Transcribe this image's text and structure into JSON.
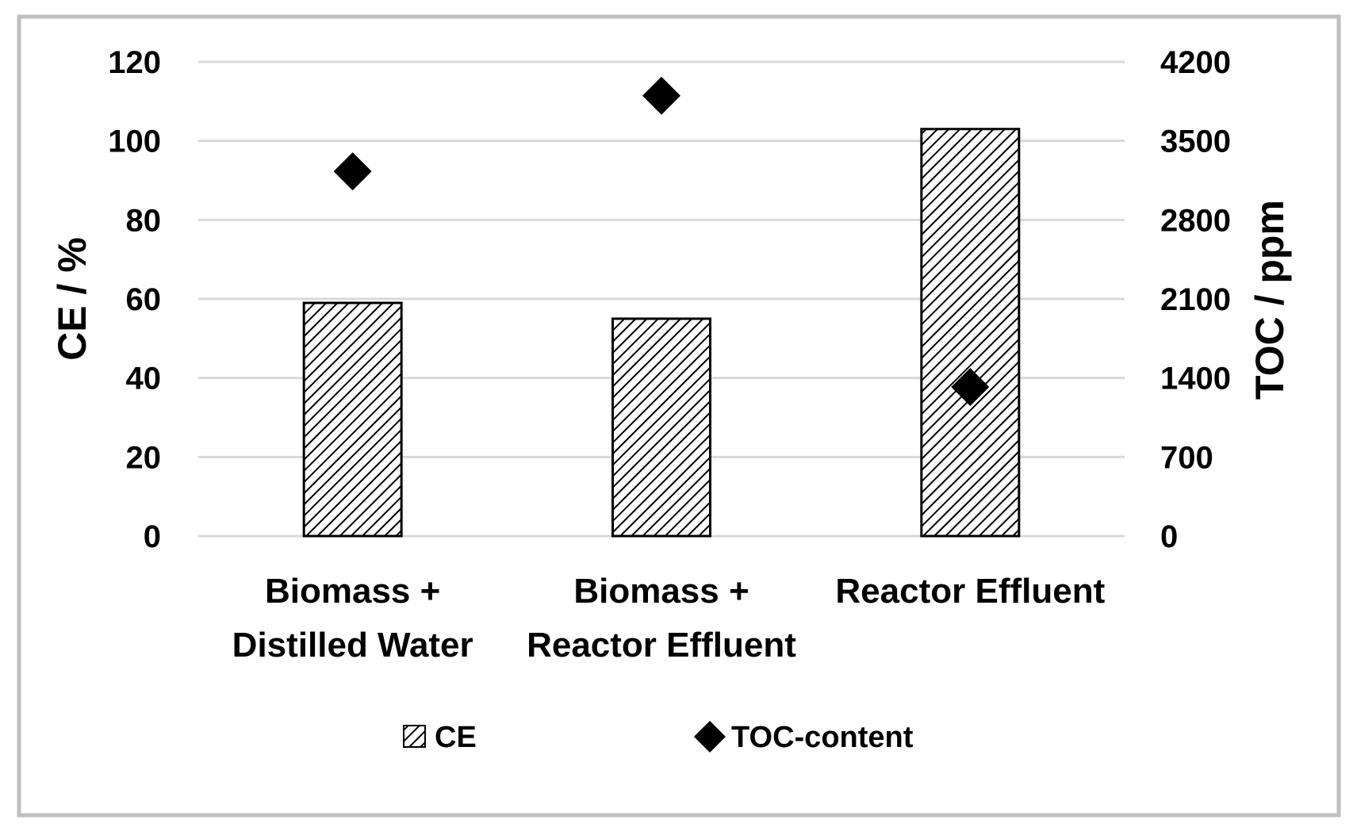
{
  "chart_data": {
    "type": "bar",
    "title": "",
    "categories": [
      [
        "Biomass +",
        "Distilled Water"
      ],
      [
        "Biomass +",
        "Reactor Effluent"
      ],
      [
        "Reactor Effluent"
      ]
    ],
    "series": [
      {
        "name": "CE",
        "kind": "bar",
        "axis": "left",
        "fill": "diagonal-hatch",
        "values": [
          59,
          55,
          103
        ]
      },
      {
        "name": "TOC-content",
        "kind": "scatter",
        "axis": "right",
        "marker": "diamond",
        "values": [
          3230,
          3900,
          1320
        ]
      }
    ],
    "ylabel": "CE / %",
    "ylim": [
      0,
      120
    ],
    "yticks": [
      "0",
      "20",
      "40",
      "60",
      "80",
      "100",
      "120"
    ],
    "y2label": "TOC / ppm",
    "y2lim": [
      0,
      4200
    ],
    "y2ticks": [
      "0",
      "700",
      "1400",
      "2100",
      "2800",
      "3500",
      "4200"
    ],
    "grid": true,
    "legend": {
      "position": "bottom",
      "entries": [
        "CE",
        "TOC-content"
      ]
    }
  },
  "colors": {
    "bar_stroke": "#000000",
    "marker": "#000000",
    "grid": "#d9d9d9",
    "frame": "#bfbfbf",
    "text": "#000000"
  }
}
